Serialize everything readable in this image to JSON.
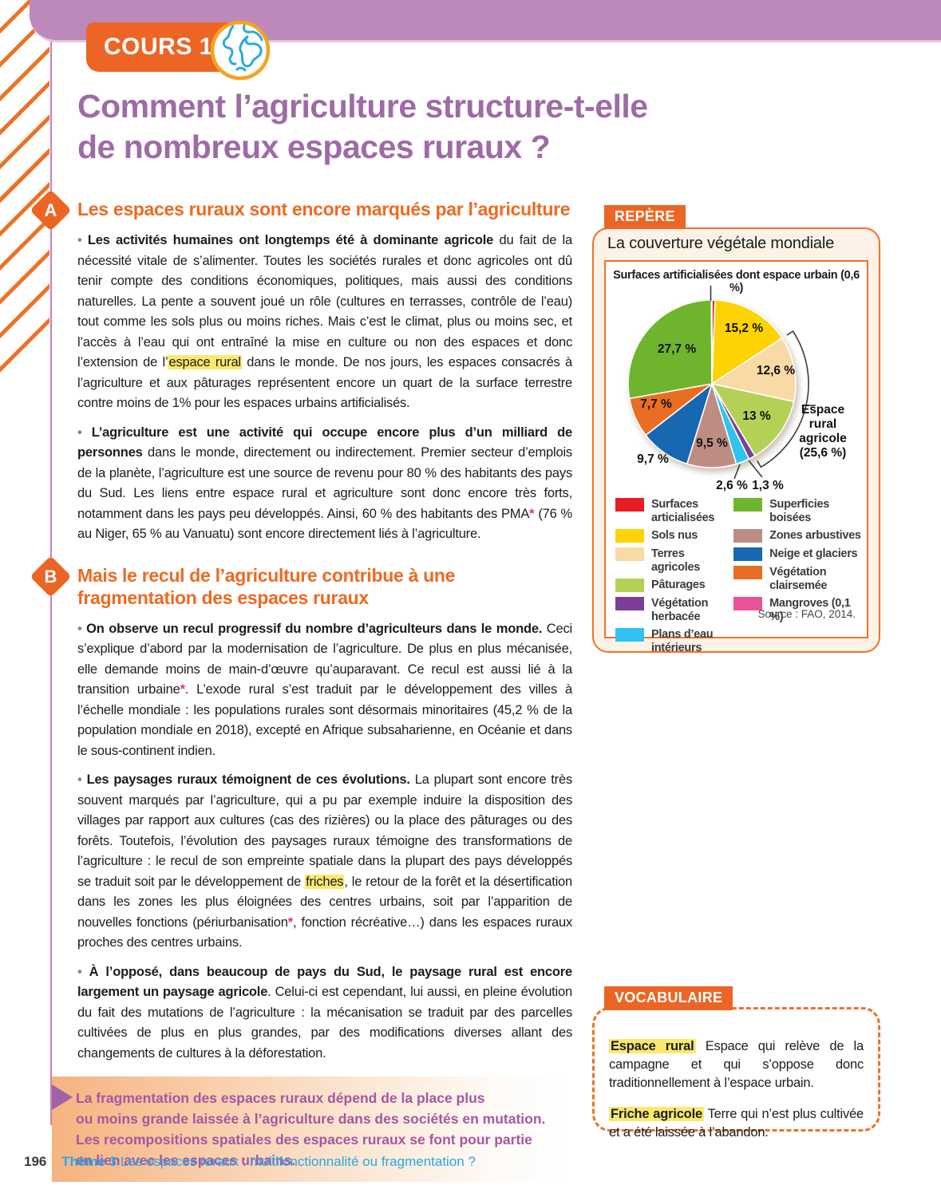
{
  "page": {
    "cours_label": "COURS 1",
    "title": "Comment l’agriculture structure-t-elle\nde nombreux espaces ruraux ?",
    "footer": {
      "page_number": "196",
      "theme_label": "Thème 3",
      "theme_title": "Les espaces ruraux : multifonctionnalité ou fragmentation ?"
    }
  },
  "sections": [
    {
      "letter": "A",
      "heading": "Les espaces ruraux sont encore marqués par l’agriculture"
    },
    {
      "letter": "B",
      "heading": "Mais le recul de l’agriculture contribue à une fragmentation des espaces ruraux"
    }
  ],
  "paragraphs": {
    "a1": [
      {
        "t": "• ",
        "s": "bl"
      },
      {
        "t": "Les activités humaines ont longtemps été à dominante agricole",
        "s": "b"
      },
      {
        "t": " du fait de la nécessité vitale de s’alimenter. Toutes les sociétés rurales et donc agricoles ont dû tenir compte des conditions économiques, politiques, mais aussi des conditions naturelles. La pente a souvent joué un rôle (cultures en terrasses, contrôle de l’eau) tout comme les sols plus ou moins riches. Mais c’est le climat, plus ou moins sec, et l’accès à l’eau qui ont entraîné la mise en culture ou non des espaces et donc l’extension de l’",
        "s": "n"
      },
      {
        "t": "espace rural",
        "s": "h"
      },
      {
        "t": " dans le monde. De nos jours, les espaces consacrés à l’agriculture et aux pâturages représentent encore un quart de la surface terrestre contre moins de 1% pour les espaces urbains artificialisés.",
        "s": "n"
      }
    ],
    "a2": [
      {
        "t": "• ",
        "s": "bl"
      },
      {
        "t": "L’agriculture est une activité qui occupe encore plus d’un milliard de personnes",
        "s": "b"
      },
      {
        "t": " dans le monde, directement ou indirectement. Premier secteur d’emplois de la planète, l’agriculture est une source de revenu pour 80 % des habitants des pays du Sud. Les liens entre espace rural et agriculture sont donc encore très forts, notamment dans les pays peu développés. Ainsi, 60 % des habitants des PMA",
        "s": "n"
      },
      {
        "t": "*",
        "s": "a"
      },
      {
        "t": " (76 % au Niger, 65 % au Vanuatu) sont encore directement liés à l’agriculture.",
        "s": "n"
      }
    ],
    "b1": [
      {
        "t": "• ",
        "s": "bl"
      },
      {
        "t": "On observe un recul progressif du nombre d’agriculteurs dans le monde.",
        "s": "b"
      },
      {
        "t": " Ceci s’explique d’abord par la modernisation de l’agriculture. De plus en plus mécanisée, elle demande moins de main-d’œuvre qu’auparavant. Ce recul est aussi lié à la transition urbaine",
        "s": "n"
      },
      {
        "t": "*",
        "s": "a"
      },
      {
        "t": ". L’exode rural s’est traduit par le développement des villes à l’échelle mondiale : les populations rurales sont désormais minoritaires (45,2 % de la population mondiale en 2018), excepté en Afrique subsaharienne, en Océanie et dans le sous-continent indien.",
        "s": "n"
      }
    ],
    "b2": [
      {
        "t": "• ",
        "s": "bl"
      },
      {
        "t": "Les paysages ruraux témoignent de ces évolutions.",
        "s": "b"
      },
      {
        "t": " La plupart sont encore très souvent marqués par l’agriculture, qui a pu par exemple induire la disposition des villages par rapport aux cultures (cas des rizières) ou la place des pâturages ou des forêts. Toutefois, l’évolution des paysages ruraux témoigne des transformations de l’agriculture : le recul de son empreinte spatiale dans la plupart des pays développés se traduit soit par le développement de ",
        "s": "n"
      },
      {
        "t": "friches",
        "s": "h"
      },
      {
        "t": ", le retour de la forêt et la désertification dans les zones les plus éloignées des centres urbains, soit par l’apparition de nouvelles fonctions (périurbanisation",
        "s": "n"
      },
      {
        "t": "*",
        "s": "a"
      },
      {
        "t": ", fonction récréative…) dans les espaces ruraux proches des centres urbains.",
        "s": "n"
      }
    ],
    "b3": [
      {
        "t": "• ",
        "s": "bl"
      },
      {
        "t": "À l’opposé, dans beaucoup de pays du Sud, le paysage rural est encore largement un paysage agricole",
        "s": "b"
      },
      {
        "t": ". Celui-ci est cependant, lui aussi, en pleine évolution du fait des mutations de l’agriculture : la mécanisation se traduit par des parcelles cultivées de plus en plus grandes, par des modifications diverses allant des changements de cultures à la déforestation.",
        "s": "n"
      }
    ]
  },
  "summary": {
    "text": "La fragmentation des espaces ruraux dépend de la place plus\nou moins grande laissée à l’agriculture dans des sociétés en mutation.\nLes recompositions spatiales des espaces ruraux se font pour partie\nen lien avec les espaces urbains."
  },
  "repere": {
    "label": "REPÈRE",
    "title": "La couverture végétale mondiale",
    "annotation": "Surfaces artificialisées dont espace urbain (0,6 %)",
    "bracket_label": "Espace\nrural\nagricole\n(25,6 %)",
    "source": "Source : FAO, 2014."
  },
  "chart_data": {
    "type": "pie",
    "title": "La couverture végétale mondiale",
    "unit": "% de la surface terrestre",
    "start_angle": "top, clockwise",
    "slices": [
      {
        "id": "surfaces-artificialisees",
        "legend": "Surfaces\narticialisées",
        "value": 0.6,
        "display": "",
        "color": "#e71d25"
      },
      {
        "id": "sols-nus",
        "legend": "Sols nus",
        "value": 15.2,
        "display": "15,2 %",
        "color": "#fdd303"
      },
      {
        "id": "terres-agricoles",
        "legend": "Terres agricoles",
        "value": 12.6,
        "display": "12,6 %",
        "color": "#f9d9a6"
      },
      {
        "id": "paturages",
        "legend": "Pâturages",
        "value": 13,
        "display": "13 %",
        "color": "#b5d155"
      },
      {
        "id": "vegetation-herbacee",
        "legend": "Végétation\nherbacée",
        "value": 1.3,
        "display": "1,3 %",
        "color": "#7b3f98"
      },
      {
        "id": "plans-eau-interieurs",
        "legend": "Plans d’eau intérieurs",
        "value": 2.6,
        "display": "2,6 %",
        "color": "#2fc3f0"
      },
      {
        "id": "zones-arbustives",
        "legend": "Zones arbustives",
        "value": 9.5,
        "display": "9,5 %",
        "color": "#bd8d83"
      },
      {
        "id": "neige-et-glaciers",
        "legend": "Neige et glaciers",
        "value": 9.7,
        "display": "9,7 %",
        "color": "#1767b1"
      },
      {
        "id": "vegetation-clairsemee",
        "legend": "Végétation clairsemée",
        "value": 7.7,
        "display": "7,7 %",
        "color": "#ea6d24"
      },
      {
        "id": "superficies-boisees",
        "legend": "Superficies boisées",
        "value": 27.7,
        "display": "27,7 %",
        "color": "#6eb52d"
      },
      {
        "id": "mangroves",
        "legend": "Mangroves (0,1 %)",
        "value": 0.1,
        "display": "",
        "color": "#e9539a"
      }
    ],
    "legend_columns": [
      [
        0,
        1,
        2,
        3,
        4,
        5
      ],
      [
        9,
        6,
        7,
        8,
        10
      ]
    ],
    "grouping": {
      "label": "Espace rural agricole (25,6 %)",
      "members": [
        "terres-agricoles",
        "paturages"
      ]
    },
    "annotation": "Surfaces artificialisées dont espace urbain (0,6 %)",
    "source": "Source : FAO, 2014."
  },
  "vocab": {
    "label": "VOCABULAIRE",
    "entries": [
      {
        "term": "Espace rural",
        "def": " Espace qui relève de la campagne et qui s’oppose donc traditionnellement à l’espace urbain."
      },
      {
        "term": "Friche agricole",
        "def": " Terre qui n’est plus cultivée et a été laissée à l’abandon."
      }
    ]
  },
  "colors": {
    "accent_orange": "#ed6524",
    "band_purple": "#bd88ba",
    "title_purple": "#9e6ba6",
    "footer_blue": "#28a9e1",
    "highlight_yellow": "#fbe96d",
    "summary_purple": "#a558a2"
  }
}
